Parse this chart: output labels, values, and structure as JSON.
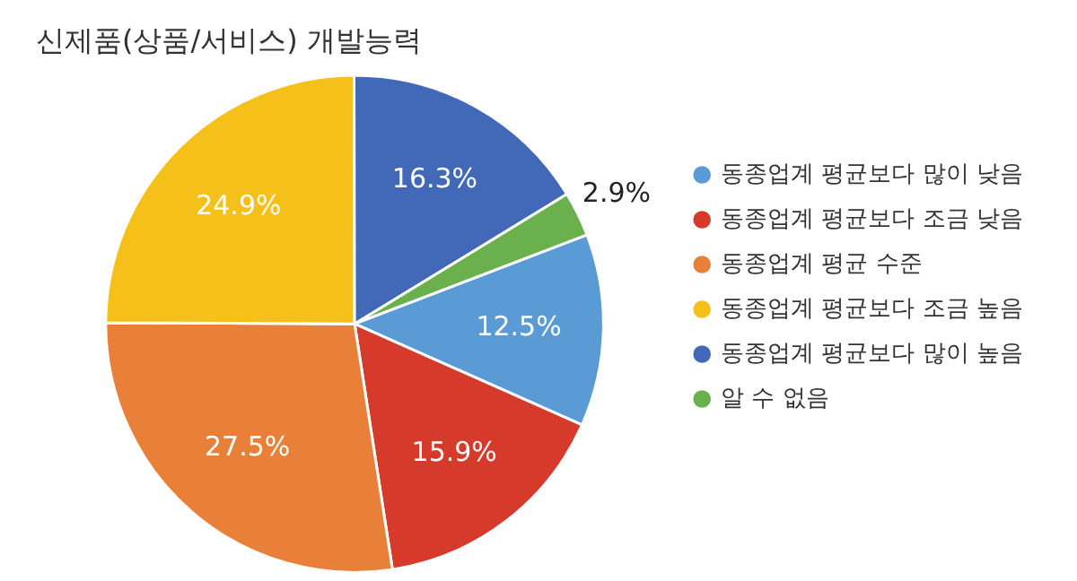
{
  "chart_data": {
    "type": "pie",
    "title": "신제품(상품/서비스) 개발능력",
    "categories": [
      "동종업계 평균보다 많이 낮음",
      "동종업계 평균보다 조금 낮음",
      "동종업계 평균 수준",
      "동종업계 평균보다 조금 높음",
      "동종업계 평균보다 많이 높음",
      "알 수 없음"
    ],
    "values": [
      12.5,
      15.9,
      27.5,
      24.9,
      16.3,
      2.9
    ],
    "colors": [
      "#5b9bd5",
      "#d63a2a",
      "#e8803a",
      "#f5c01a",
      "#4169b8",
      "#6ab04c"
    ],
    "value_labels": [
      "12.5%",
      "15.9%",
      "27.5%",
      "24.9%",
      "16.3%",
      "2.9%"
    ],
    "legend": "right"
  }
}
